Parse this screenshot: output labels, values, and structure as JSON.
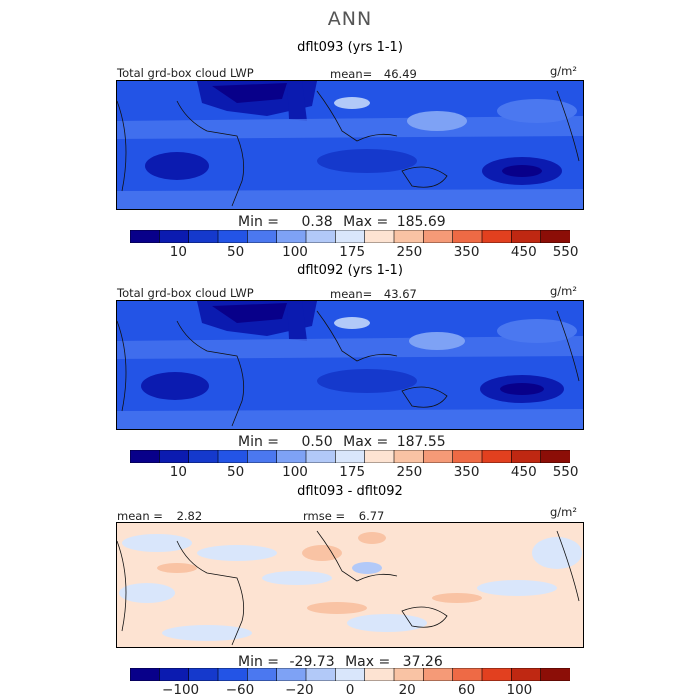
{
  "title": "ANN",
  "palette": [
    "#08008a",
    "#0b1bb0",
    "#1539cc",
    "#2354e6",
    "#4b78f0",
    "#7ea2f5",
    "#b2c9f8",
    "#d9e6fb",
    "#fde3d2",
    "#f9c3a4",
    "#f59a77",
    "#ee6a45",
    "#e2401f",
    "#bf2812",
    "#8c0e07"
  ],
  "diff_palette": [
    "#08008a",
    "#0b1bb0",
    "#1539cc",
    "#2354e6",
    "#4b78f0",
    "#7ea2f5",
    "#b2c9f8",
    "#d9e6fb",
    "#fde3d2",
    "#f9c3a4",
    "#f59a77",
    "#ee6a45",
    "#e2401f",
    "#bf2812",
    "#8c0e07"
  ],
  "chart_data": [
    {
      "type": "heatmap",
      "title": "dflt093 (yrs 1-1)",
      "field_label": "Total grd-box cloud LWP",
      "mean_label": "mean=",
      "mean": "46.49",
      "units": "g/m²",
      "min_label": "Min =",
      "min": "0.38",
      "max_label": "Max =",
      "max": "185.69",
      "colorbar_ticks": [
        "10",
        "50",
        "100",
        "175",
        "250",
        "350",
        "450",
        "550"
      ],
      "colorbar_levels": [
        5,
        10,
        25,
        50,
        75,
        100,
        150,
        175,
        200,
        250,
        300,
        350,
        400,
        450,
        500,
        550
      ]
    },
    {
      "type": "heatmap",
      "title": "dflt092 (yrs 1-1)",
      "field_label": "Total grd-box cloud LWP",
      "mean_label": "mean=",
      "mean": "43.67",
      "units": "g/m²",
      "min_label": "Min =",
      "min": "0.50",
      "max_label": "Max =",
      "max": "187.55",
      "colorbar_ticks": [
        "10",
        "50",
        "100",
        "175",
        "250",
        "350",
        "450",
        "550"
      ],
      "colorbar_levels": [
        5,
        10,
        25,
        50,
        75,
        100,
        150,
        175,
        200,
        250,
        300,
        350,
        400,
        450,
        500,
        550
      ]
    },
    {
      "type": "heatmap",
      "title": "dflt093 - dflt092",
      "mean_label": "mean =",
      "mean": "2.82",
      "rmse_label": "rmse =",
      "rmse": "6.77",
      "units": "g/m²",
      "min_label": "Min =",
      "min": "-29.73",
      "max_label": "Max =",
      "max": "37.26",
      "colorbar_ticks": [
        "−100",
        "−60",
        "−20",
        "0",
        "20",
        "60",
        "100"
      ],
      "colorbar_levels": [
        -120,
        -100,
        -80,
        -60,
        -40,
        -20,
        -10,
        0,
        10,
        20,
        40,
        60,
        80,
        100,
        120
      ]
    }
  ]
}
